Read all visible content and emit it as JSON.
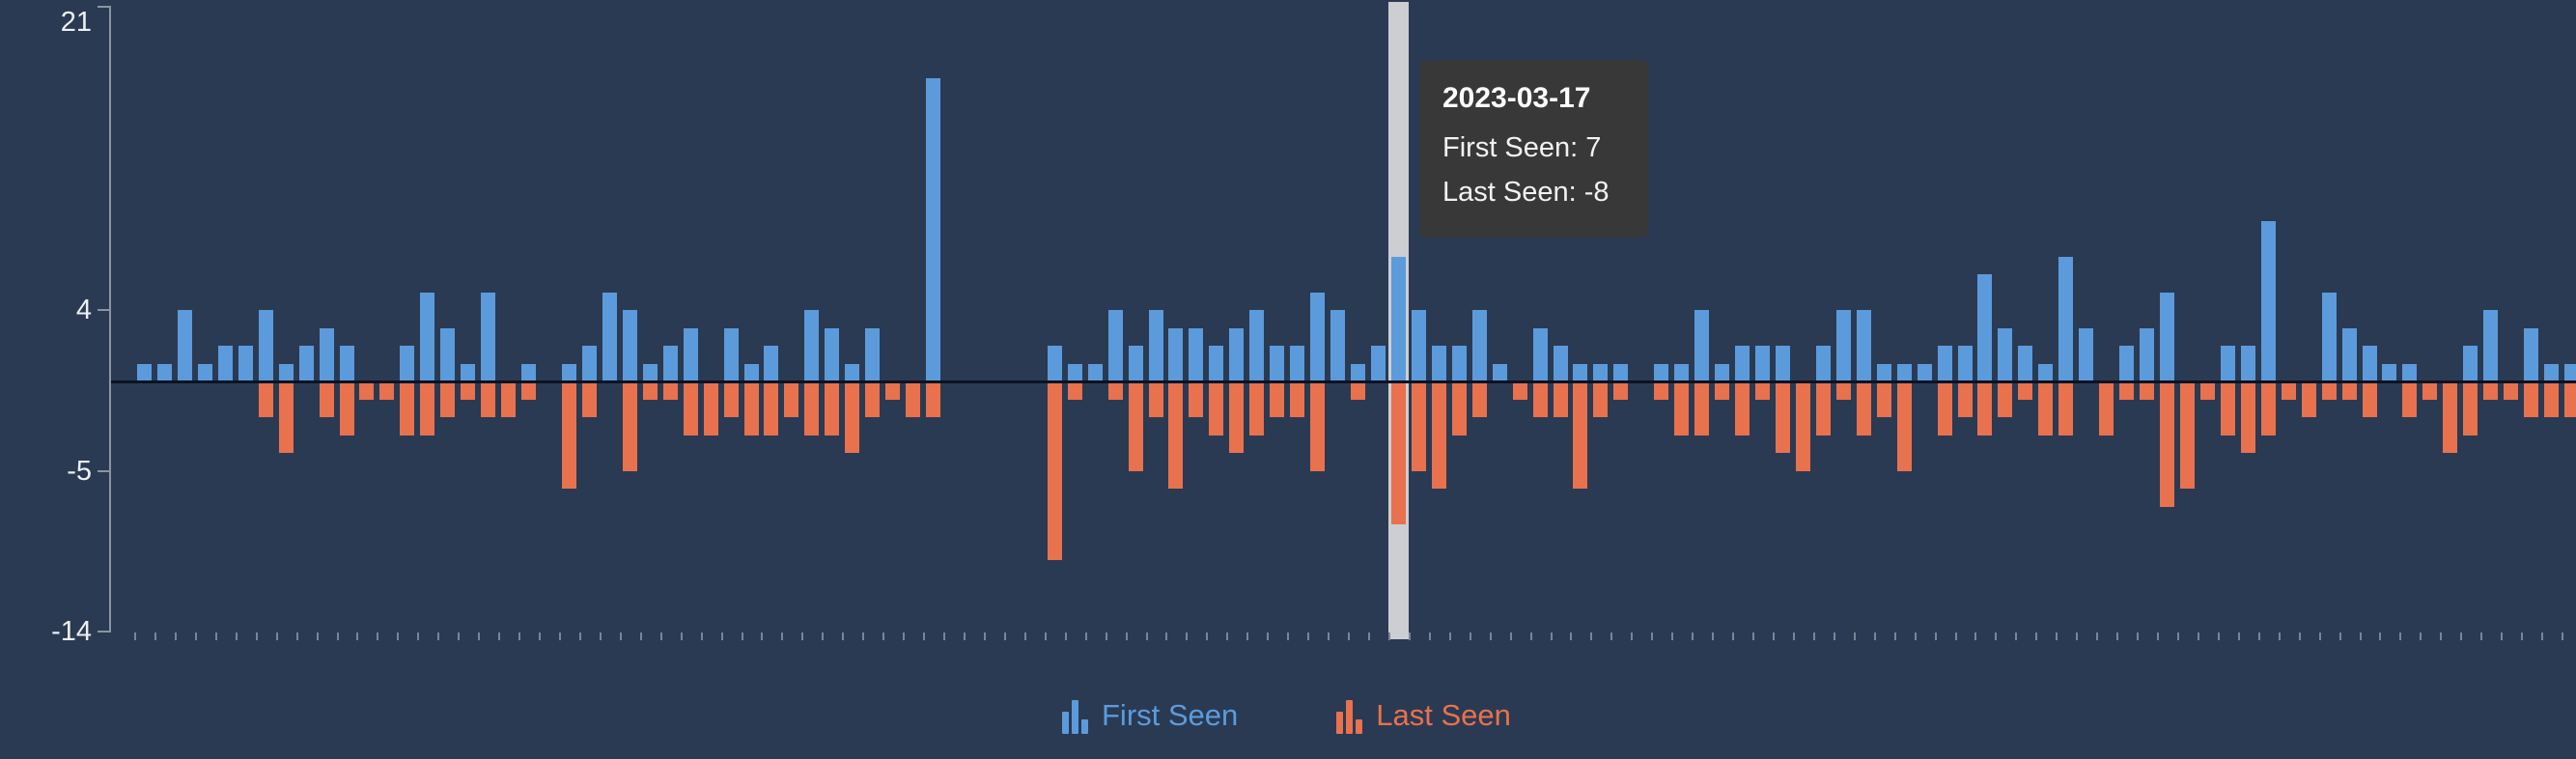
{
  "chart_data": {
    "type": "bar",
    "title": "",
    "x_axis": {
      "labels_visible": false,
      "category_count": 121,
      "highlighted_index": 62,
      "highlighted_date": "2023-03-17"
    },
    "y_axis": {
      "min": -14,
      "max": 21,
      "tick_values": [
        21,
        4,
        -5,
        -14
      ],
      "tick_labels": [
        "21",
        "4",
        "-5",
        "-14"
      ]
    },
    "grid": false,
    "legend": {
      "position": "bottom",
      "items": [
        "First Seen",
        "Last Seen"
      ]
    },
    "series": [
      {
        "name": "First Seen",
        "color": "#5C9BDB",
        "values": [
          1,
          1,
          4,
          1,
          2,
          2,
          4,
          1,
          2,
          3,
          2,
          0,
          0,
          2,
          5,
          3,
          1,
          5,
          0,
          1,
          0,
          1,
          2,
          5,
          4,
          1,
          2,
          3,
          0,
          3,
          1,
          2,
          0,
          4,
          3,
          1,
          3,
          0,
          0,
          17,
          0,
          0,
          0,
          0,
          0,
          2,
          1,
          1,
          4,
          2,
          4,
          3,
          3,
          2,
          3,
          4,
          2,
          2,
          5,
          4,
          1,
          2,
          7,
          4,
          2,
          2,
          4,
          1,
          0,
          3,
          2,
          1,
          1,
          1,
          0,
          1,
          1,
          4,
          1,
          2,
          2,
          2,
          0,
          2,
          4,
          4,
          1,
          1,
          1,
          2,
          2,
          6,
          3,
          2,
          1,
          7,
          3,
          0,
          2,
          3,
          5,
          0,
          0,
          2,
          2,
          9,
          0,
          0,
          5,
          3,
          2,
          1,
          1,
          0,
          0,
          2,
          4,
          0,
          3,
          1,
          1
        ]
      },
      {
        "name": "Last Seen",
        "color": "#E8714E",
        "values": [
          0,
          0,
          0,
          0,
          0,
          0,
          -2,
          -4,
          0,
          -2,
          -3,
          -1,
          -1,
          -3,
          -3,
          -2,
          -1,
          -2,
          -2,
          -1,
          0,
          -6,
          -2,
          0,
          -5,
          -1,
          -1,
          -3,
          -3,
          -2,
          -3,
          -3,
          -2,
          -3,
          -3,
          -4,
          -2,
          -1,
          -2,
          -2,
          0,
          0,
          0,
          0,
          0,
          -10,
          -1,
          0,
          -1,
          -5,
          -2,
          -6,
          -2,
          -3,
          -4,
          -3,
          -2,
          -2,
          -5,
          0,
          -1,
          0,
          -8,
          -5,
          -6,
          -3,
          -2,
          0,
          -1,
          -2,
          -2,
          -6,
          -2,
          -1,
          0,
          -1,
          -3,
          -3,
          -1,
          -3,
          -1,
          -4,
          -5,
          -3,
          -1,
          -3,
          -2,
          -5,
          0,
          -3,
          -2,
          -3,
          -2,
          -1,
          -3,
          -3,
          0,
          -3,
          -1,
          -1,
          -7,
          -6,
          -1,
          -3,
          -4,
          -3,
          -1,
          -2,
          -1,
          -1,
          -2,
          0,
          -2,
          -1,
          -4,
          -3,
          -1,
          -1,
          -2,
          -2,
          -2
        ]
      }
    ]
  },
  "tooltip": {
    "title": "2023-03-17",
    "line1": "First Seen: 7",
    "line2": "Last Seen: -8"
  },
  "colors": {
    "background": "#2A3A52",
    "bar_first_seen": "#5C9BDB",
    "bar_last_seen": "#E8714E",
    "hover_band": "#CDCED2",
    "tooltip_background": "#383839",
    "tooltip_text": "#F4F4F4",
    "axis": "#8B94A3",
    "zero_line": "#0B1322",
    "y_label_text": "#ECEFF4"
  }
}
